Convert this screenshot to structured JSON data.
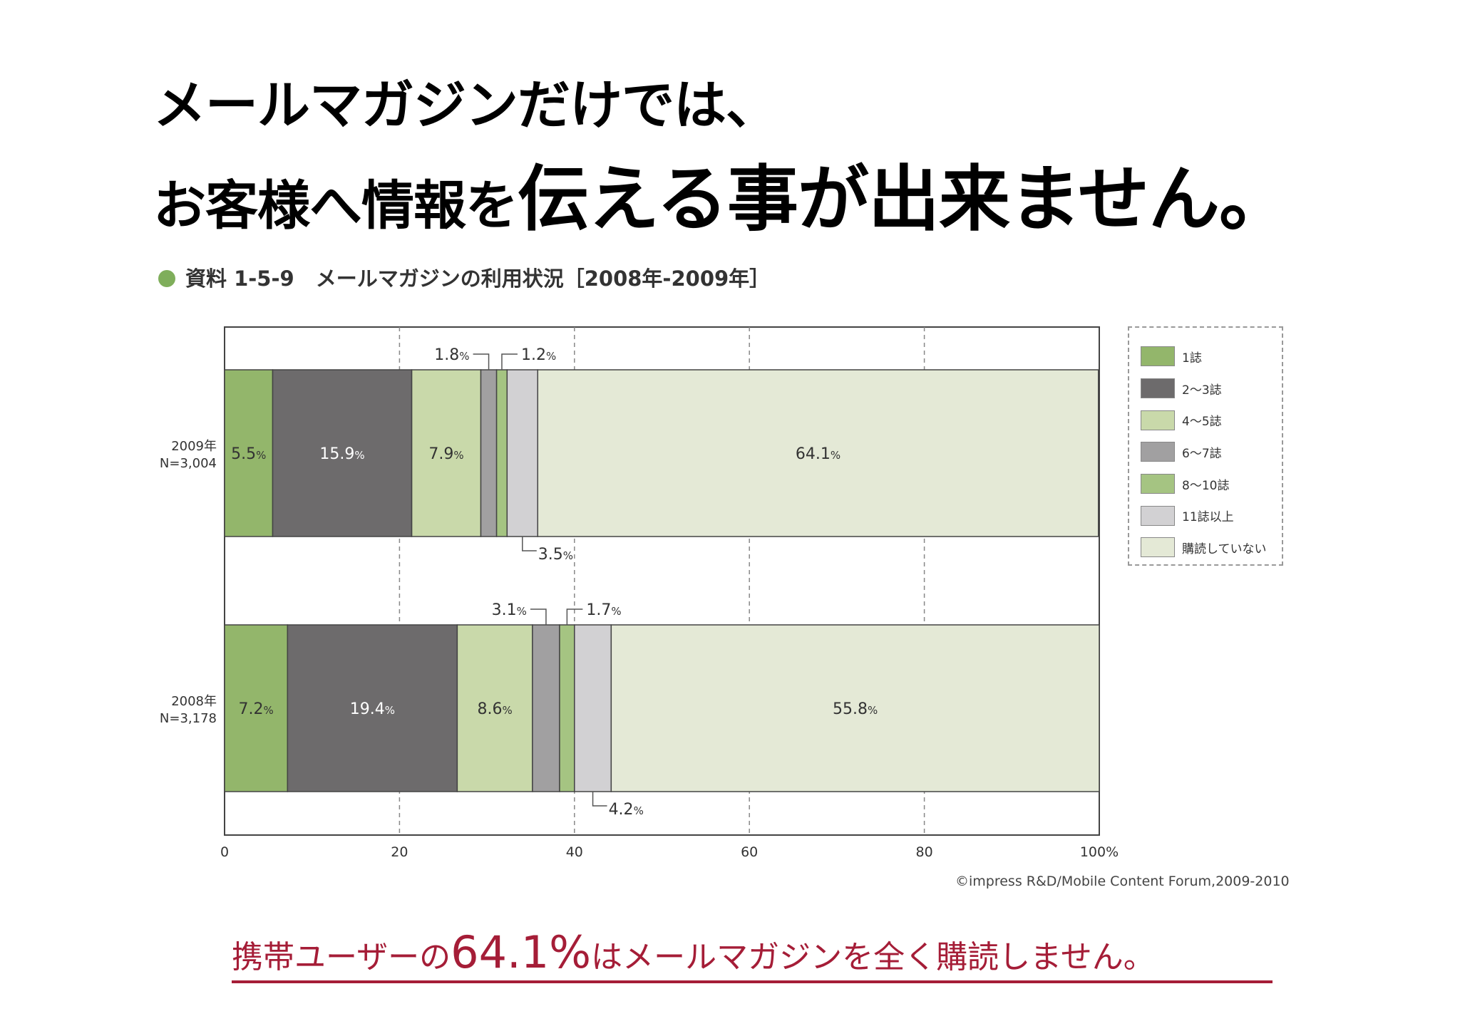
{
  "headline": {
    "line1": "メールマガジンだけでは、",
    "line2_a": "お客様へ情報を",
    "line2_b": "伝える事が出来ません。"
  },
  "figure_caption": {
    "label": "資料 1-5-9",
    "title": "メールマガジンの利用状況［2008年-2009年］",
    "dot_color": "#7fae5b"
  },
  "chart_data": {
    "type": "bar",
    "orientation": "horizontal",
    "stacked": true,
    "categories": [
      "2009年 N=3,004",
      "2008年 N=3,178"
    ],
    "row_labels": [
      [
        "2009年",
        "N=3,004"
      ],
      [
        "2008年",
        "N=3,178"
      ]
    ],
    "series": [
      {
        "name": "1誌",
        "values": [
          5.5,
          7.2
        ],
        "color": "#93b66b"
      },
      {
        "name": "2〜3誌",
        "values": [
          15.9,
          19.4
        ],
        "color": "#6d6b6c"
      },
      {
        "name": "4〜5誌",
        "values": [
          7.9,
          8.6
        ],
        "color": "#c9d9aa"
      },
      {
        "name": "6〜7誌",
        "values": [
          1.8,
          3.1
        ],
        "color": "#a1a0a1"
      },
      {
        "name": "8〜10誌",
        "values": [
          1.2,
          1.7
        ],
        "color": "#a5c482"
      },
      {
        "name": "11誌以上",
        "values": [
          3.5,
          4.2
        ],
        "color": "#d2d1d3"
      },
      {
        "name": "購読していない",
        "values": [
          64.1,
          55.8
        ],
        "color": "#e4e9d6"
      }
    ],
    "value_labels": [
      [
        "5.5",
        "15.9",
        "7.9",
        "1.8",
        "1.2",
        "3.5",
        "64.1"
      ],
      [
        "7.2",
        "19.4",
        "8.6",
        "3.1",
        "1.7",
        "4.2",
        "55.8"
      ]
    ],
    "xlim": [
      0,
      100
    ],
    "x_ticks": [
      "0",
      "20",
      "40",
      "60",
      "80",
      "100%"
    ],
    "grid": true,
    "legend_position": "right"
  },
  "source": "©impress R&D/Mobile Content Forum,2009-2010",
  "conclusion": {
    "prefix": "携帯ユーザーの",
    "highlight": "64.1%",
    "suffix": "はメールマガジンを全く購読しません。"
  }
}
